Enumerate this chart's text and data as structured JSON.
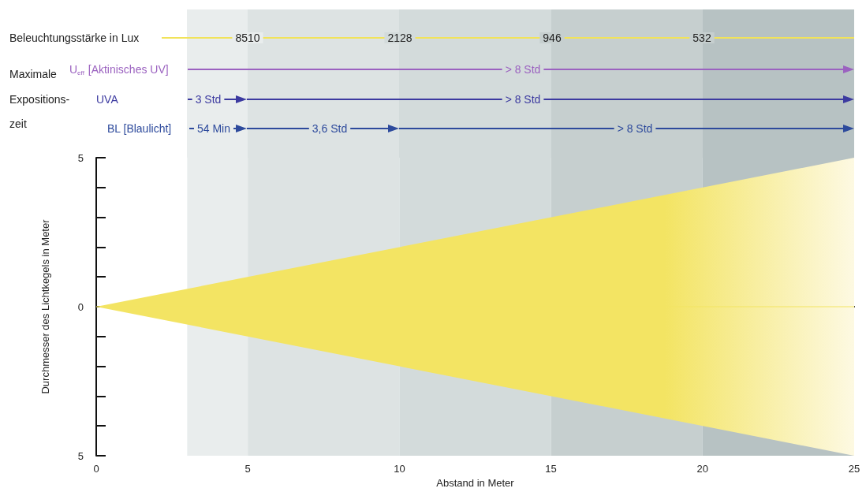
{
  "chart_data": {
    "type": "line",
    "xlabel": "Abstand in Meter",
    "ylabel": "Durchmesser des Lichtkegels in Meter",
    "x": [
      0,
      25
    ],
    "series": [
      {
        "color": "#f3e463",
        "values": [
          0,
          0
        ],
        "lower": [
          0,
          -5
        ],
        "upper": [
          0,
          5
        ]
      }
    ],
    "xlim": [
      0,
      25
    ],
    "ylim": [
      -5,
      5
    ],
    "xticks": [
      0,
      5,
      10,
      15,
      20,
      25
    ],
    "yticks": [
      {
        "value": 5,
        "label": "5"
      },
      {
        "value": 4,
        "label": null
      },
      {
        "value": 3,
        "label": null
      },
      {
        "value": 2,
        "label": null
      },
      {
        "value": 1,
        "label": null
      },
      {
        "value": 0,
        "label": "0"
      },
      {
        "value": -1,
        "label": null
      },
      {
        "value": -2,
        "label": null
      },
      {
        "value": -3,
        "label": null
      },
      {
        "value": -4,
        "label": null
      },
      {
        "value": -5,
        "label": "5"
      }
    ],
    "bands": [
      {
        "axis": "x",
        "from": 3,
        "to": 5,
        "color": "#e9eded"
      },
      {
        "axis": "x",
        "from": 5,
        "to": 10,
        "color": "#dde3e3"
      },
      {
        "axis": "x",
        "from": 10,
        "to": 15,
        "color": "#d3dbdb"
      },
      {
        "axis": "x",
        "from": 15,
        "to": 20,
        "color": "#c6cfcf"
      },
      {
        "axis": "x",
        "from": 20,
        "to": 25,
        "color": "#b7c2c3"
      }
    ],
    "annotations": [
      "Beleuchtungsstärke in Lux",
      "8510",
      "2128",
      "946",
      "532",
      "Maximale",
      "Expositions-",
      "zeit",
      "U$_{eff}$ [Aktinisches UV]",
      "> 8 Std",
      "UVA",
      "3 Std",
      "> 8 Std",
      "BL [Blaulicht]",
      "54 Min",
      "3,6 Std",
      "> 8 Std"
    ],
    "marker": "none"
  }
}
